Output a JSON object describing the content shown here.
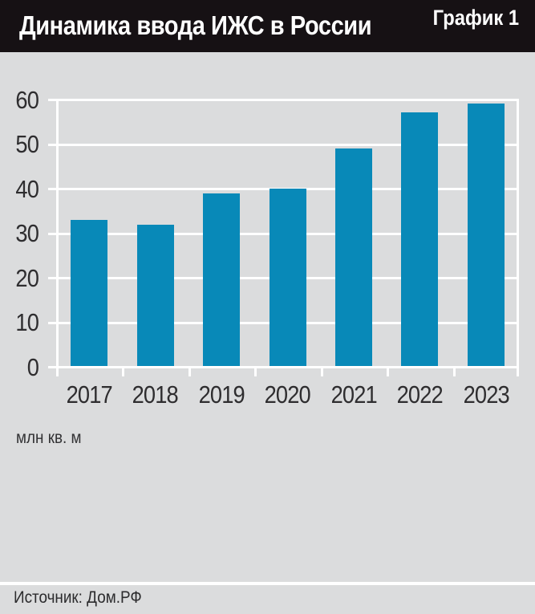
{
  "header": {
    "title": "Динамика ввода ИЖС в России",
    "badge": "График 1"
  },
  "chart_data": {
    "type": "bar",
    "categories": [
      "2017",
      "2018",
      "2019",
      "2020",
      "2021",
      "2022",
      "2023"
    ],
    "values": [
      33,
      32,
      39,
      40,
      49,
      57,
      59
    ],
    "title": "Динамика ввода ИЖС в России",
    "xlabel": "",
    "ylabel": "млн кв. м",
    "ylim": [
      0,
      60
    ],
    "ytick_step": 10,
    "yticks": [
      0,
      10,
      20,
      30,
      40,
      50,
      60
    ],
    "grid": true,
    "legend": "none",
    "bar_color": "#0889b8",
    "plot_bg": "#dbdcdd",
    "grid_color": "#ffffff"
  },
  "units_label": "млн кв. м",
  "source": {
    "label": "Источник: Дом.РФ"
  },
  "colors": {
    "header_bg": "#161114",
    "header_text": "#ffffff",
    "page_bg": "#dbdcdd",
    "bar": "#0889b8",
    "grid": "#ffffff",
    "axis_text": "#2e2d2f"
  }
}
